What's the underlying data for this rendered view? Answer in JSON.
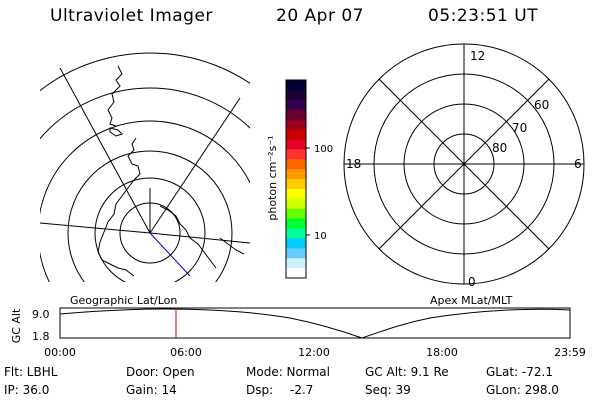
{
  "header": {
    "instrument": "Ultraviolet Imager",
    "date": "20 Apr 07",
    "time": "05:23:51 UT"
  },
  "colorbar": {
    "unit_label": "photon cm⁻²s⁻¹",
    "ticks": [
      "100",
      "10"
    ],
    "colors": [
      "#000033",
      "#1a0033",
      "#33004d",
      "#660033",
      "#99001a",
      "#cc0000",
      "#e60026",
      "#ff3333",
      "#ff6600",
      "#ff9900",
      "#ffcc00",
      "#ffff00",
      "#ccff00",
      "#66ff00",
      "#00ff33",
      "#00ff99",
      "#00ccff",
      "#66ccff",
      "#ccf2ff",
      "#ffffff"
    ]
  },
  "polar_plot": {
    "mlt_labels": {
      "top": "12",
      "left": "18",
      "right": "6",
      "bottom": "0"
    },
    "lat_labels": [
      "60",
      "70",
      "80"
    ]
  },
  "timeline": {
    "left_label": "Geographic Lat/Lon",
    "right_label": "Apex MLat/MLT",
    "ylabel": "GC Alt",
    "y_ticks": [
      "9.0",
      "1.8"
    ],
    "x_ticks": [
      "00:00",
      "06:00",
      "12:00",
      "18:00",
      "23:59"
    ],
    "marker_color": "#cc0000"
  },
  "info": {
    "filter": "Flt: LBHL",
    "door": "Door: Open",
    "mode": "Mode: Normal",
    "gc_alt": "GC Alt: 9.1 Re",
    "glat": "GLat: -72.1",
    "ip": "IP: 36.0",
    "gain": "Gain: 14",
    "dsp": "Dsp:",
    "dsp_value": "-2.7",
    "seq": "Seq: 39",
    "glon": "GLon: 298.0"
  }
}
